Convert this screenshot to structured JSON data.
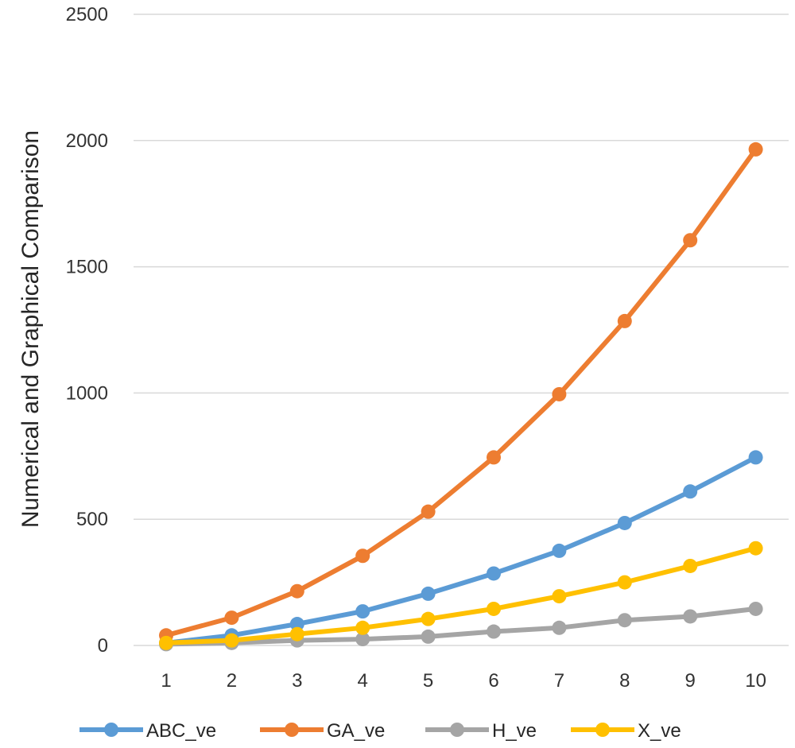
{
  "chart_data": {
    "type": "line",
    "title": "",
    "xlabel": "",
    "ylabel": "Numerical and Graphical Comparison",
    "categories": [
      "1",
      "2",
      "3",
      "4",
      "5",
      "6",
      "7",
      "8",
      "9",
      "10"
    ],
    "ylim": [
      0,
      2500
    ],
    "yticks": [
      "0",
      "500",
      "1000",
      "1500",
      "2000",
      "2500"
    ],
    "grid": "horizontal",
    "legend_position": "bottom",
    "series": [
      {
        "name": "ABC_ve",
        "color": "#5B9BD5",
        "values": [
          10,
          40,
          85,
          135,
          205,
          285,
          375,
          485,
          610,
          745
        ]
      },
      {
        "name": "GA_ve",
        "color": "#ED7D31",
        "values": [
          40,
          110,
          215,
          355,
          530,
          745,
          995,
          1285,
          1605,
          1965
        ]
      },
      {
        "name": "H_ve",
        "color": "#A5A5A5",
        "values": [
          5,
          10,
          20,
          25,
          35,
          55,
          70,
          100,
          115,
          145
        ]
      },
      {
        "name": "X_ve",
        "color": "#FFC000",
        "values": [
          10,
          20,
          45,
          70,
          105,
          145,
          195,
          250,
          315,
          385
        ]
      }
    ]
  }
}
